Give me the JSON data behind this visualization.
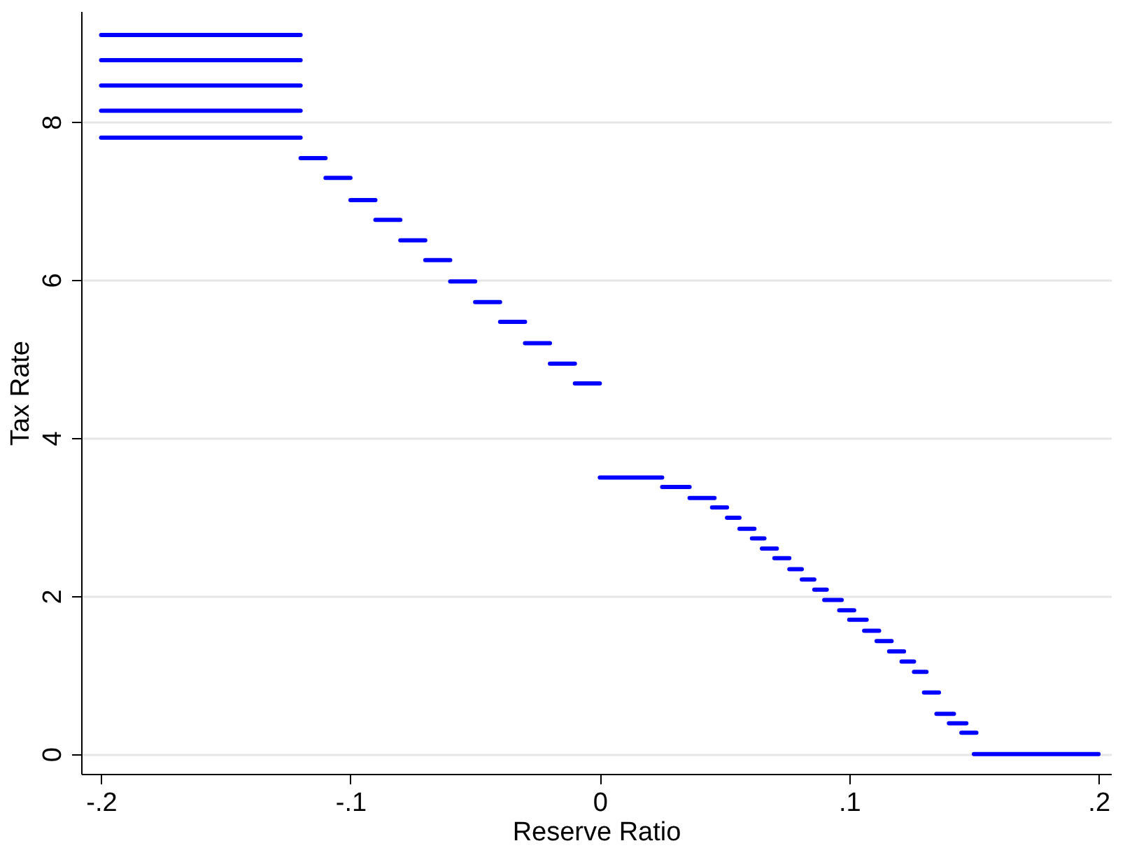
{
  "chart_data": {
    "type": "line",
    "xlabel": "Reserve Ratio",
    "ylabel": "Tax Rate",
    "xlim": [
      -0.208,
      0.205
    ],
    "ylim": [
      -0.25,
      9.4
    ],
    "xticks": [
      {
        "value": -0.2,
        "label": "-.2"
      },
      {
        "value": -0.1,
        "label": "-.1"
      },
      {
        "value": 0,
        "label": "0"
      },
      {
        "value": 0.1,
        "label": ".1"
      },
      {
        "value": 0.2,
        "label": ".2"
      }
    ],
    "yticks": [
      0,
      2,
      4,
      6,
      8
    ],
    "grid": "y",
    "marker": "none",
    "line_style": "solid",
    "series": [
      {
        "color": "#0000ff",
        "x": [
          -0.2,
          -0.12
        ],
        "values": [
          9.1,
          9.1
        ]
      },
      {
        "color": "#0000ff",
        "x": [
          -0.2,
          -0.12
        ],
        "values": [
          8.78,
          8.78
        ]
      },
      {
        "color": "#0000ff",
        "x": [
          -0.2,
          -0.12
        ],
        "values": [
          8.46,
          8.46
        ]
      },
      {
        "color": "#0000ff",
        "x": [
          -0.2,
          -0.12
        ],
        "values": [
          8.14,
          8.14
        ]
      },
      {
        "color": "#0000ff",
        "x": [
          -0.2,
          -0.12
        ],
        "values": [
          7.8,
          7.8
        ]
      },
      {
        "color": "#0000ff",
        "x": [
          -0.12,
          -0.11
        ],
        "values": [
          7.54,
          7.54
        ]
      },
      {
        "color": "#0000ff",
        "x": [
          -0.11,
          -0.1
        ],
        "values": [
          7.29,
          7.29
        ]
      },
      {
        "color": "#0000ff",
        "x": [
          -0.1,
          -0.09
        ],
        "values": [
          7.01,
          7.01
        ]
      },
      {
        "color": "#0000ff",
        "x": [
          -0.09,
          -0.08
        ],
        "values": [
          6.76,
          6.76
        ]
      },
      {
        "color": "#0000ff",
        "x": [
          -0.08,
          -0.07
        ],
        "values": [
          6.5,
          6.5
        ]
      },
      {
        "color": "#0000ff",
        "x": [
          -0.07,
          -0.06
        ],
        "values": [
          6.25,
          6.25
        ]
      },
      {
        "color": "#0000ff",
        "x": [
          -0.06,
          -0.05
        ],
        "values": [
          5.98,
          5.98
        ]
      },
      {
        "color": "#0000ff",
        "x": [
          -0.05,
          -0.04
        ],
        "values": [
          5.72,
          5.72
        ]
      },
      {
        "color": "#0000ff",
        "x": [
          -0.04,
          -0.03
        ],
        "values": [
          5.47,
          5.47
        ]
      },
      {
        "color": "#0000ff",
        "x": [
          -0.03,
          -0.02
        ],
        "values": [
          5.2,
          5.2
        ]
      },
      {
        "color": "#0000ff",
        "x": [
          -0.02,
          -0.01
        ],
        "values": [
          4.94,
          4.94
        ]
      },
      {
        "color": "#0000ff",
        "x": [
          -0.01,
          0
        ],
        "values": [
          4.69,
          4.69
        ]
      },
      {
        "color": "#0000ff",
        "x": [
          0,
          0.025
        ],
        "values": [
          3.5,
          3.5
        ]
      },
      {
        "color": "#0000ff",
        "x": [
          0.025,
          0.036
        ],
        "values": [
          3.38,
          3.38
        ]
      },
      {
        "color": "#0000ff",
        "x": [
          0.036,
          0.046
        ],
        "values": [
          3.24,
          3.24
        ]
      },
      {
        "color": "#0000ff",
        "x": [
          0.045,
          0.051
        ],
        "values": [
          3.12,
          3.12
        ]
      },
      {
        "color": "#0000ff",
        "x": [
          0.051,
          0.056
        ],
        "values": [
          2.99,
          2.99
        ]
      },
      {
        "color": "#0000ff",
        "x": [
          0.056,
          0.062
        ],
        "values": [
          2.85,
          2.85
        ]
      },
      {
        "color": "#0000ff",
        "x": [
          0.061,
          0.066
        ],
        "values": [
          2.73,
          2.73
        ]
      },
      {
        "color": "#0000ff",
        "x": [
          0.065,
          0.071
        ],
        "values": [
          2.6,
          2.6
        ]
      },
      {
        "color": "#0000ff",
        "x": [
          0.07,
          0.076
        ],
        "values": [
          2.48,
          2.48
        ]
      },
      {
        "color": "#0000ff",
        "x": [
          0.076,
          0.081
        ],
        "values": [
          2.34,
          2.34
        ]
      },
      {
        "color": "#0000ff",
        "x": [
          0.081,
          0.086
        ],
        "values": [
          2.21,
          2.21
        ]
      },
      {
        "color": "#0000ff",
        "x": [
          0.086,
          0.091
        ],
        "values": [
          2.08,
          2.08
        ]
      },
      {
        "color": "#0000ff",
        "x": [
          0.09,
          0.097
        ],
        "values": [
          1.95,
          1.95
        ]
      },
      {
        "color": "#0000ff",
        "x": [
          0.096,
          0.102
        ],
        "values": [
          1.82,
          1.82
        ]
      },
      {
        "color": "#0000ff",
        "x": [
          0.1,
          0.107
        ],
        "values": [
          1.7,
          1.7
        ]
      },
      {
        "color": "#0000ff",
        "x": [
          0.106,
          0.112
        ],
        "values": [
          1.56,
          1.56
        ]
      },
      {
        "color": "#0000ff",
        "x": [
          0.111,
          0.117
        ],
        "values": [
          1.43,
          1.43
        ]
      },
      {
        "color": "#0000ff",
        "x": [
          0.116,
          0.122
        ],
        "values": [
          1.3,
          1.3
        ]
      },
      {
        "color": "#0000ff",
        "x": [
          0.121,
          0.126
        ],
        "values": [
          1.17,
          1.17
        ]
      },
      {
        "color": "#0000ff",
        "x": [
          0.126,
          0.131
        ],
        "values": [
          1.04,
          1.04
        ]
      },
      {
        "color": "#0000ff",
        "x": [
          0.13,
          0.136
        ],
        "values": [
          0.78,
          0.78
        ]
      },
      {
        "color": "#0000ff",
        "x": [
          0.135,
          0.142
        ],
        "values": [
          0.51,
          0.51
        ]
      },
      {
        "color": "#0000ff",
        "x": [
          0.14,
          0.147
        ],
        "values": [
          0.39,
          0.39
        ]
      },
      {
        "color": "#0000ff",
        "x": [
          0.145,
          0.151
        ],
        "values": [
          0.27,
          0.27
        ]
      },
      {
        "color": "#0000ff",
        "x": [
          0.15,
          0.2
        ],
        "values": [
          0,
          0
        ]
      }
    ]
  }
}
